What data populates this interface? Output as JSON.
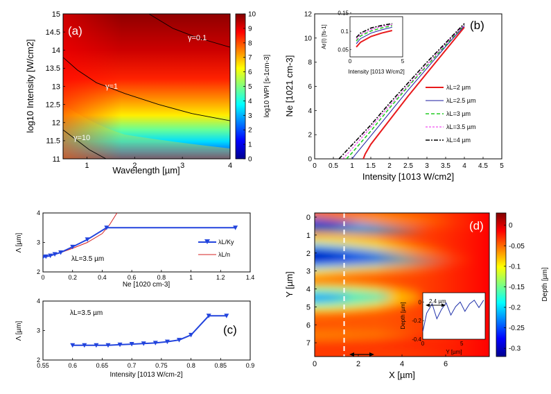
{
  "colors": {
    "line2um": "#e8191b",
    "line25um": "#1a1aa0",
    "line3um": "#22cc22",
    "line35um": "#ee22ee",
    "line4um": "#000000",
    "markerBlue": "#2244dd",
    "lineRed": "#d42020",
    "dashWhite": "#ffffff"
  },
  "chart_data": [
    {
      "id": "a",
      "type": "heatmap",
      "panel_label": "(a)",
      "xlabel": "Wavelength [µm]",
      "ylabel": "log10 Intensity [W/cm2]",
      "xlim": [
        0.5,
        4
      ],
      "ylim": [
        11,
        15
      ],
      "xticks": [
        "1",
        "2",
        "3",
        "4"
      ],
      "xtick_values": [
        1,
        2,
        3,
        4
      ],
      "yticks": [
        "11",
        "11.5",
        "12",
        "12.5",
        "13",
        "13.5",
        "14",
        "14.5",
        "15"
      ],
      "ytick_values": [
        11,
        11.5,
        12,
        12.5,
        13,
        13.5,
        14,
        14.5,
        15
      ],
      "colorbar": {
        "label": "log10 WPI [s-1cm-3]",
        "range": [
          0,
          10
        ],
        "ticks": [
          "0",
          "1",
          "2",
          "3",
          "4",
          "5",
          "6",
          "7",
          "8",
          "9",
          "10"
        ]
      },
      "contours": [
        {
          "label": "γ=0.1",
          "points": [
            [
              2.3,
              15
            ],
            [
              2.8,
              14.6
            ],
            [
              3.3,
              14.35
            ],
            [
              4,
              14.08
            ]
          ]
        },
        {
          "label": "γ=1",
          "points": [
            [
              0.5,
              13.8
            ],
            [
              0.8,
              13.45
            ],
            [
              1.2,
              13.1
            ],
            [
              1.8,
              12.8
            ],
            [
              2.5,
              12.5
            ],
            [
              3.2,
              12.25
            ],
            [
              4,
              12.05
            ]
          ]
        },
        {
          "label": "γ=10",
          "points": [
            [
              0.5,
              11.8
            ],
            [
              0.8,
              11.5
            ],
            [
              1.05,
              11.25
            ],
            [
              1.4,
              11
            ]
          ]
        }
      ]
    },
    {
      "id": "b",
      "type": "line",
      "panel_label": "(b)",
      "xlabel": "Intensity [1013 W/cm2]",
      "ylabel": "Ne [1021 cm-3]",
      "xlim": [
        0,
        5
      ],
      "ylim": [
        0,
        12
      ],
      "xticks": [
        "0",
        "0.5",
        "1",
        "1.5",
        "2",
        "2.5",
        "3",
        "3.5",
        "4",
        "4.5",
        "5"
      ],
      "xtick_values": [
        0,
        0.5,
        1,
        1.5,
        2,
        2.5,
        3,
        3.5,
        4,
        4.5,
        5
      ],
      "yticks": [
        "0",
        "2",
        "4",
        "6",
        "8",
        "10",
        "12"
      ],
      "ytick_values": [
        0,
        2,
        4,
        6,
        8,
        10,
        12
      ],
      "series": [
        {
          "name": "λL=2 µm",
          "x": [
            1.3,
            1.35,
            1.5,
            2.0,
            2.5,
            3.0,
            3.5,
            4.0
          ],
          "y": [
            0,
            0.4,
            1.2,
            3.2,
            5.2,
            7.1,
            9.0,
            10.9
          ]
        },
        {
          "name": "λL=2.5 µm",
          "x": [
            1.0,
            1.1,
            1.5,
            2.0,
            2.5,
            3.0,
            3.5,
            4.0
          ],
          "y": [
            0,
            0.4,
            1.9,
            3.8,
            5.7,
            7.5,
            9.3,
            11.0
          ]
        },
        {
          "name": "λL=3 µm",
          "x": [
            0.85,
            1.0,
            1.5,
            2.0,
            2.5,
            3.0,
            3.5,
            4.0
          ],
          "y": [
            0,
            0.5,
            2.3,
            4.2,
            6.0,
            7.7,
            9.4,
            11.1
          ]
        },
        {
          "name": "λL=3.5 µm",
          "x": [
            0.75,
            0.9,
            1.5,
            2.0,
            2.5,
            3.0,
            3.5,
            4.0
          ],
          "y": [
            0,
            0.5,
            2.6,
            4.4,
            6.1,
            7.8,
            9.5,
            11.1
          ]
        },
        {
          "name": "λL=4 µm",
          "x": [
            0.65,
            0.8,
            1.5,
            2.0,
            2.5,
            3.0,
            3.5,
            4.0
          ],
          "y": [
            0,
            0.5,
            2.8,
            4.6,
            6.3,
            8.0,
            9.6,
            11.2
          ]
        }
      ],
      "inset": {
        "xlabel": "Intensity [1013 W/cm2]",
        "ylabel": "Ar(I) [fs-1]",
        "xlim": [
          0,
          5
        ],
        "ylim": [
          0.03,
          0.14
        ],
        "xticks": [
          "0",
          "5"
        ],
        "xtick_values": [
          0,
          5
        ],
        "yticks": [
          "0.05",
          "0.1",
          "0.15"
        ],
        "ytick_values": [
          0.05,
          0.1,
          0.15
        ],
        "series": [
          {
            "name": "λL=2 µm",
            "x": [
              0.6,
              1,
              2,
              3,
              4
            ],
            "y": [
              0.057,
              0.07,
              0.086,
              0.095,
              0.102
            ]
          },
          {
            "name": "λL=2.5 µm",
            "x": [
              0.6,
              1,
              2,
              3,
              4
            ],
            "y": [
              0.066,
              0.08,
              0.095,
              0.104,
              0.111
            ]
          },
          {
            "name": "λL=3 µm",
            "x": [
              0.6,
              1,
              2,
              3,
              4
            ],
            "y": [
              0.073,
              0.087,
              0.101,
              0.109,
              0.115
            ]
          },
          {
            "name": "λL=3.5 µm",
            "x": [
              0.6,
              1,
              2,
              3,
              4
            ],
            "y": [
              0.078,
              0.091,
              0.105,
              0.113,
              0.118
            ]
          },
          {
            "name": "λL=4 µm",
            "x": [
              0.6,
              1,
              2,
              3,
              4
            ],
            "y": [
              0.083,
              0.095,
              0.109,
              0.116,
              0.121
            ]
          }
        ]
      }
    },
    {
      "id": "c-top",
      "type": "line",
      "xlabel": "Ne [1020 cm-3]",
      "ylabel": "Λ [µm]",
      "annotation": "λL=3.5 µm",
      "xlim": [
        0,
        1.4
      ],
      "ylim": [
        2,
        4
      ],
      "xticks": [
        "0",
        "0.2",
        "0.4",
        "0.6",
        "0.8",
        "1",
        "1.2",
        "1.4"
      ],
      "xtick_values": [
        0,
        0.2,
        0.4,
        0.6,
        0.8,
        1.0,
        1.2,
        1.4
      ],
      "yticks": [
        "2",
        "3",
        "4"
      ],
      "ytick_values": [
        2,
        3,
        4
      ],
      "series": [
        {
          "name": "λL/Ky",
          "x": [
            0,
            0.02,
            0.05,
            0.08,
            0.12,
            0.2,
            0.3,
            0.43,
            1.3
          ],
          "y": [
            2.5,
            2.52,
            2.55,
            2.6,
            2.66,
            2.85,
            3.1,
            3.5,
            3.5
          ]
        },
        {
          "name": "λL/n",
          "x": [
            0,
            0.05,
            0.1,
            0.2,
            0.3,
            0.4,
            0.45,
            0.5
          ],
          "y": [
            2.5,
            2.55,
            2.62,
            2.8,
            3.0,
            3.3,
            3.6,
            4.0
          ]
        }
      ]
    },
    {
      "id": "c-bottom",
      "type": "line",
      "panel_label": "(c)",
      "xlabel": "Intensity [1013 W/cm-2]",
      "ylabel": "Λ [µm]",
      "annotation": "λL=3.5 µm",
      "xlim": [
        0.55,
        0.9
      ],
      "ylim": [
        2,
        4
      ],
      "xticks": [
        "0.55",
        "0.6",
        "0.65",
        "0.7",
        "0.75",
        "0.8",
        "0.85",
        "0.9"
      ],
      "xtick_values": [
        0.55,
        0.6,
        0.65,
        0.7,
        0.75,
        0.8,
        0.85,
        0.9
      ],
      "yticks": [
        "2",
        "3",
        "4"
      ],
      "ytick_values": [
        2,
        3,
        4
      ],
      "series": [
        {
          "name": "Λ",
          "x": [
            0.6,
            0.62,
            0.64,
            0.66,
            0.68,
            0.7,
            0.72,
            0.74,
            0.76,
            0.78,
            0.8,
            0.83,
            0.86
          ],
          "y": [
            2.5,
            2.5,
            2.5,
            2.5,
            2.52,
            2.54,
            2.56,
            2.58,
            2.62,
            2.68,
            2.85,
            3.5,
            3.5
          ]
        }
      ]
    },
    {
      "id": "d",
      "type": "heatmap",
      "panel_label": "(d)",
      "xlabel": "X [µm]",
      "ylabel": "Y [µm]",
      "xlim": [
        0,
        8
      ],
      "ylim": [
        8,
        0
      ],
      "xticks": [
        "0",
        "2",
        "4",
        "6"
      ],
      "xtick_values": [
        0,
        2,
        4,
        6
      ],
      "yticks": [
        "0",
        "1",
        "2",
        "3",
        "4",
        "5",
        "6",
        "7"
      ],
      "ytick_values": [
        0,
        1,
        2,
        3,
        4,
        5,
        6,
        7
      ],
      "colorbar": {
        "label": "Depth [µm]",
        "range": [
          -0.32,
          0.03
        ],
        "ticks": [
          "0",
          "-0.05",
          "-0.1",
          "-0.15",
          "-0.2",
          "-0.25",
          "-0.3"
        ]
      },
      "dashed_line_x": 1.35,
      "inset": {
        "xlabel": "Y [µm]",
        "ylabel": "Depth [µm]",
        "annotation": "2.4 µm",
        "xlim": [
          0,
          8
        ],
        "ylim": [
          -0.4,
          0.1
        ],
        "xticks": [
          "0",
          "5"
        ],
        "xtick_values": [
          0,
          5
        ],
        "yticks": [
          "0",
          "-0.2",
          "-0.4"
        ],
        "ytick_values": [
          0,
          -0.2,
          -0.4
        ],
        "x": [
          0,
          0.5,
          1.2,
          1.8,
          2.4,
          3.0,
          3.6,
          4.2,
          4.8,
          5.4,
          6.0,
          6.6,
          7.2,
          7.8
        ],
        "y": [
          -0.32,
          -0.12,
          -0.02,
          -0.18,
          -0.08,
          -0.01,
          -0.14,
          -0.05,
          0.0,
          -0.1,
          -0.02,
          0.02,
          -0.06,
          0.02
        ]
      }
    }
  ]
}
